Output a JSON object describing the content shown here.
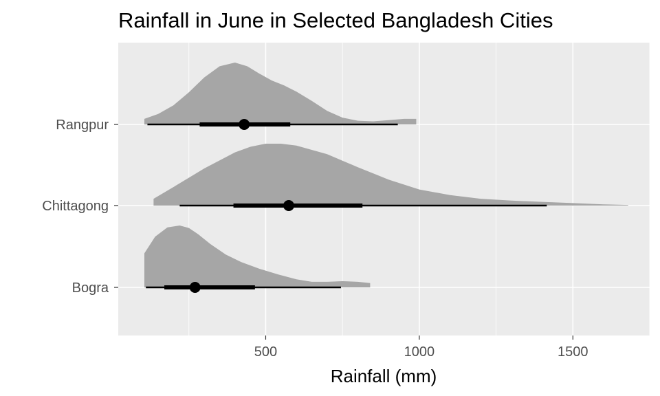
{
  "chart_data": {
    "type": "halfeye",
    "title": "Rainfall in June in Selected Bangladesh Cities",
    "xlabel": "Rainfall (mm)",
    "ylabel": "",
    "xlim": [
      20,
      1750
    ],
    "xticks": [
      500,
      1000,
      1500
    ],
    "grid": true,
    "legend": "none",
    "categories": [
      "Bogra",
      "Chittagong",
      "Rangpur"
    ],
    "series": [
      {
        "name": "Rangpur",
        "point": 430,
        "interval_66": [
          285,
          580
        ],
        "interval_95": [
          115,
          930
        ],
        "density": {
          "x": [
            105,
            150,
            200,
            250,
            300,
            350,
            400,
            440,
            480,
            520,
            560,
            600,
            650,
            700,
            750,
            800,
            850,
            900,
            950,
            990
          ],
          "y": [
            0.09,
            0.17,
            0.31,
            0.52,
            0.76,
            0.94,
            1.0,
            0.94,
            0.82,
            0.71,
            0.63,
            0.53,
            0.38,
            0.22,
            0.11,
            0.06,
            0.05,
            0.07,
            0.09,
            0.09
          ]
        }
      },
      {
        "name": "Chittagong",
        "point": 575,
        "interval_66": [
          395,
          815
        ],
        "interval_95": [
          220,
          1415
        ],
        "density": {
          "x": [
            135,
            200,
            300,
            400,
            450,
            500,
            550,
            600,
            700,
            800,
            900,
            1000,
            1100,
            1200,
            1300,
            1400,
            1500,
            1600,
            1680
          ],
          "y": [
            0.11,
            0.3,
            0.6,
            0.86,
            0.95,
            1.0,
            1.0,
            0.97,
            0.83,
            0.62,
            0.42,
            0.26,
            0.17,
            0.11,
            0.08,
            0.06,
            0.04,
            0.02,
            0.01
          ]
        }
      },
      {
        "name": "Bogra",
        "point": 270,
        "interval_66": [
          170,
          465
        ],
        "interval_95": [
          110,
          745
        ],
        "density": {
          "x": [
            105,
            140,
            180,
            220,
            250,
            280,
            320,
            370,
            420,
            480,
            540,
            600,
            650,
            700,
            750,
            800,
            840
          ],
          "y": [
            0.55,
            0.82,
            0.97,
            1.0,
            0.96,
            0.86,
            0.7,
            0.53,
            0.41,
            0.3,
            0.21,
            0.13,
            0.09,
            0.09,
            0.1,
            0.09,
            0.07
          ]
        }
      }
    ]
  }
}
